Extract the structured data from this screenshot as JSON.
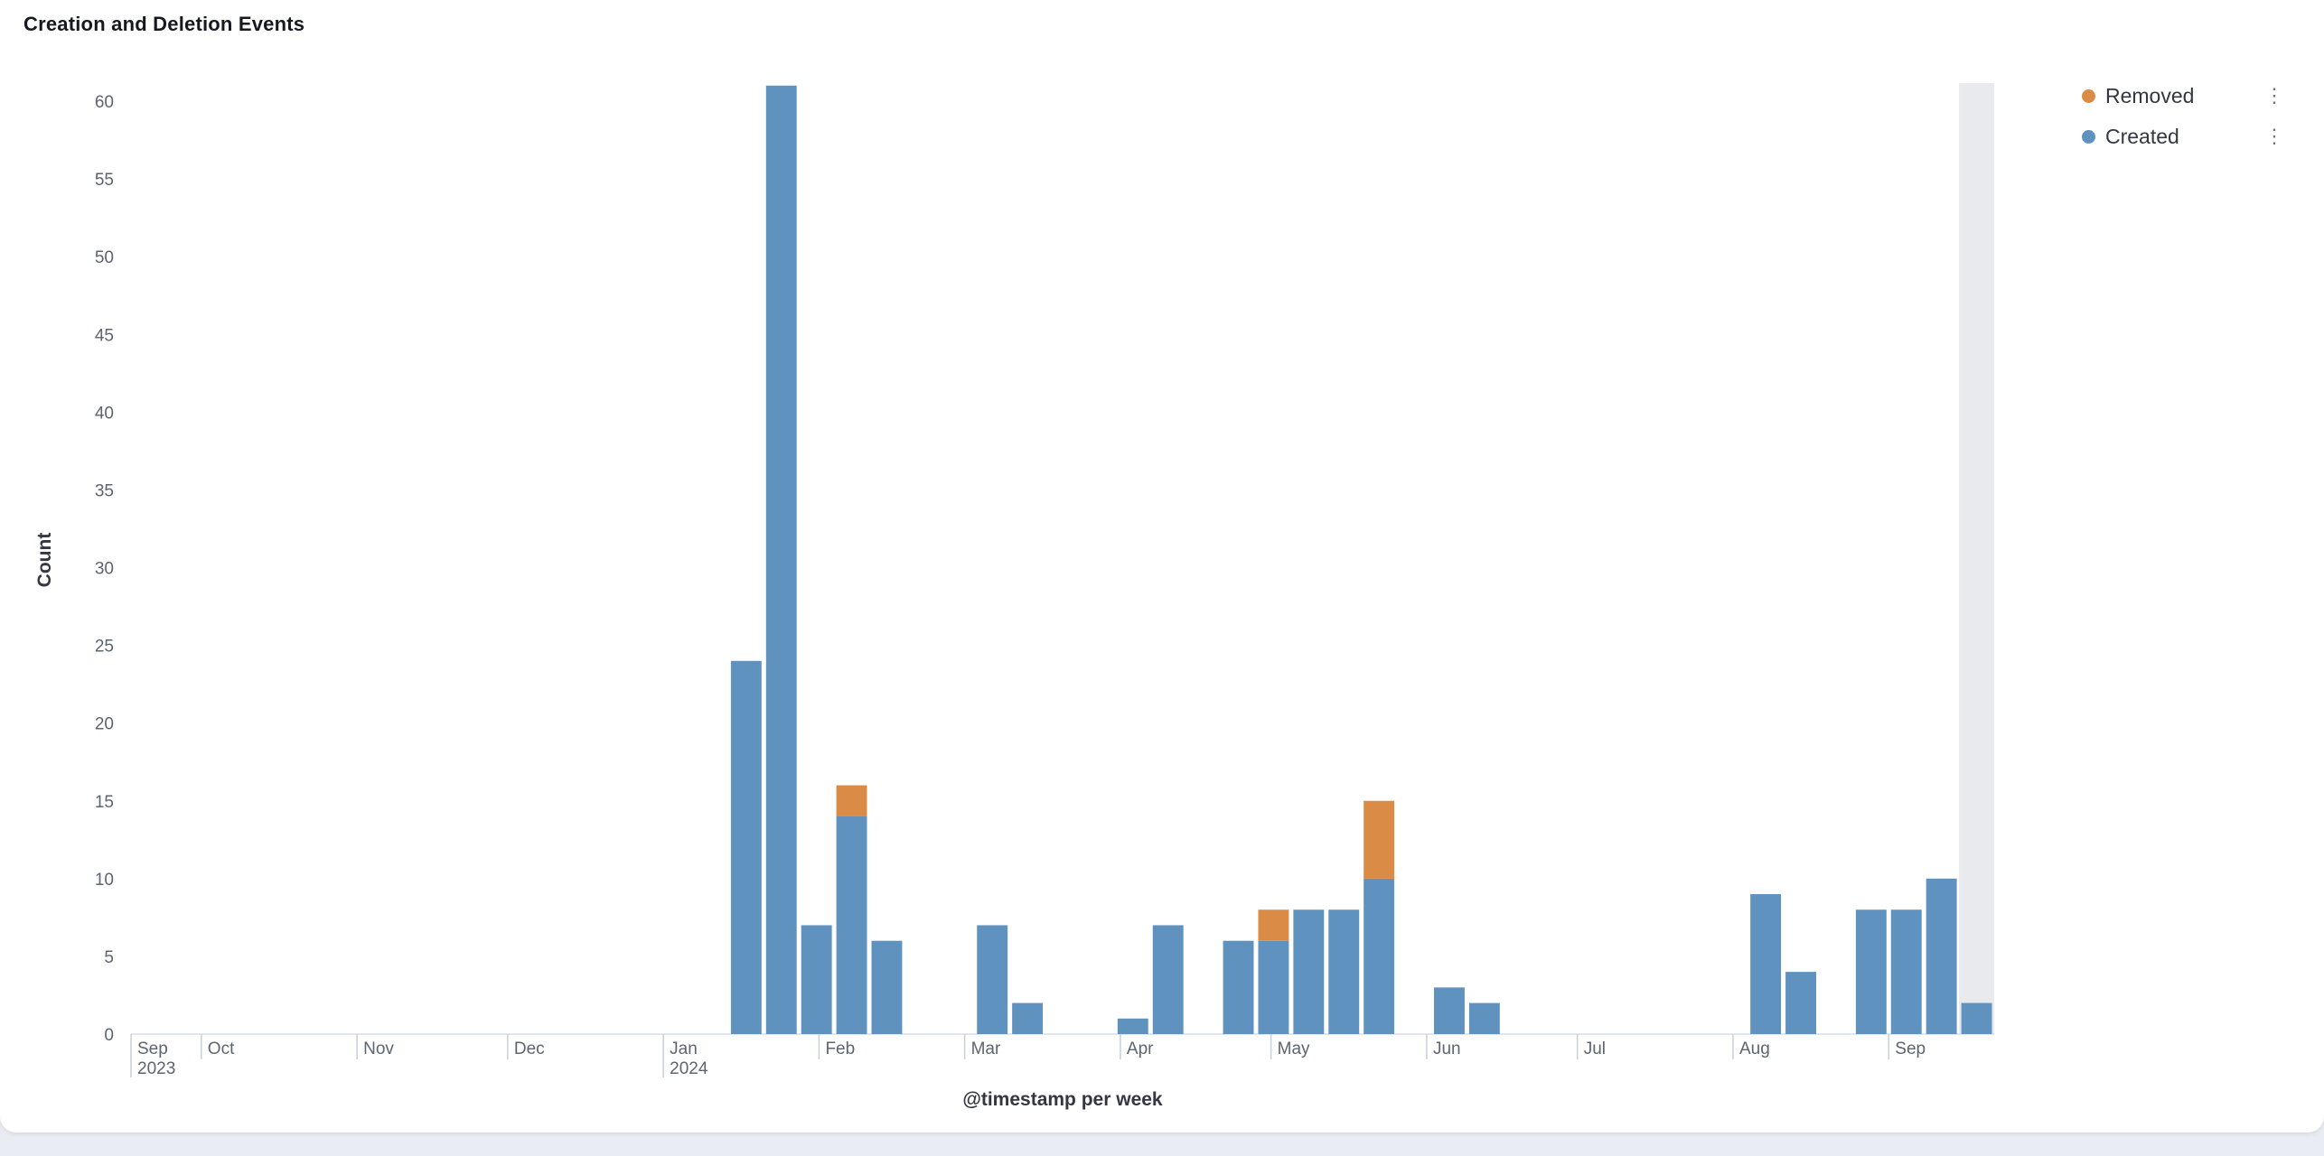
{
  "panel": {
    "title": "Creation and Deletion Events"
  },
  "legend": {
    "items": [
      {
        "label": "Removed",
        "color": "#da8b45"
      },
      {
        "label": "Created",
        "color": "#6092c0"
      }
    ],
    "menu_icon": "⋮"
  },
  "chart_data": {
    "type": "bar",
    "stacked": true,
    "title": "Creation and Deletion Events",
    "xlabel": "@timestamp per week",
    "ylabel": "Count",
    "legend_position": "top-right",
    "grid": false,
    "x_domain": {
      "start": "2023-09-17",
      "end": "2024-09-22",
      "bucket_days": 7
    },
    "y_axis": {
      "min": 0,
      "max": 60,
      "tick_step": 5
    },
    "series": [
      {
        "name": "Created",
        "color": "#6092c0"
      },
      {
        "name": "Removed",
        "color": "#da8b45"
      }
    ],
    "weeks": [
      {
        "week_start": "2024-01-14",
        "created": 24,
        "removed": 0
      },
      {
        "week_start": "2024-01-21",
        "created": 61,
        "removed": 0
      },
      {
        "week_start": "2024-01-28",
        "created": 7,
        "removed": 0
      },
      {
        "week_start": "2024-02-04",
        "created": 14,
        "removed": 2
      },
      {
        "week_start": "2024-02-11",
        "created": 6,
        "removed": 0
      },
      {
        "week_start": "2024-03-03",
        "created": 7,
        "removed": 0
      },
      {
        "week_start": "2024-03-10",
        "created": 2,
        "removed": 0
      },
      {
        "week_start": "2024-03-31",
        "created": 1,
        "removed": 0
      },
      {
        "week_start": "2024-04-07",
        "created": 7,
        "removed": 0
      },
      {
        "week_start": "2024-04-21",
        "created": 6,
        "removed": 0
      },
      {
        "week_start": "2024-04-28",
        "created": 6,
        "removed": 2
      },
      {
        "week_start": "2024-05-05",
        "created": 8,
        "removed": 0
      },
      {
        "week_start": "2024-05-12",
        "created": 8,
        "removed": 0
      },
      {
        "week_start": "2024-05-19",
        "created": 10,
        "removed": 5
      },
      {
        "week_start": "2024-06-02",
        "created": 3,
        "removed": 0
      },
      {
        "week_start": "2024-06-09",
        "created": 2,
        "removed": 0
      },
      {
        "week_start": "2024-08-04",
        "created": 9,
        "removed": 0
      },
      {
        "week_start": "2024-08-11",
        "created": 4,
        "removed": 0
      },
      {
        "week_start": "2024-08-25",
        "created": 8,
        "removed": 0
      },
      {
        "week_start": "2024-09-01",
        "created": 8,
        "removed": 0
      },
      {
        "week_start": "2024-09-08",
        "created": 10,
        "removed": 0
      },
      {
        "week_start": "2024-09-15",
        "created": 2,
        "removed": 0
      }
    ],
    "x_ticks": [
      {
        "date": "2023-09-17",
        "label": "Sep",
        "sublabel": "2023",
        "year_tick": true
      },
      {
        "date": "2023-10-01",
        "label": "Oct"
      },
      {
        "date": "2023-11-01",
        "label": "Nov"
      },
      {
        "date": "2023-12-01",
        "label": "Dec"
      },
      {
        "date": "2024-01-01",
        "label": "Jan",
        "sublabel": "2024",
        "year_tick": true
      },
      {
        "date": "2024-02-01",
        "label": "Feb"
      },
      {
        "date": "2024-03-01",
        "label": "Mar"
      },
      {
        "date": "2024-04-01",
        "label": "Apr"
      },
      {
        "date": "2024-05-01",
        "label": "May"
      },
      {
        "date": "2024-06-01",
        "label": "Jun"
      },
      {
        "date": "2024-07-01",
        "label": "Jul"
      },
      {
        "date": "2024-08-01",
        "label": "Aug"
      },
      {
        "date": "2024-09-01",
        "label": "Sep"
      }
    ],
    "partial_bucket": {
      "start": "2024-09-15",
      "color": "#e8eaee"
    }
  }
}
